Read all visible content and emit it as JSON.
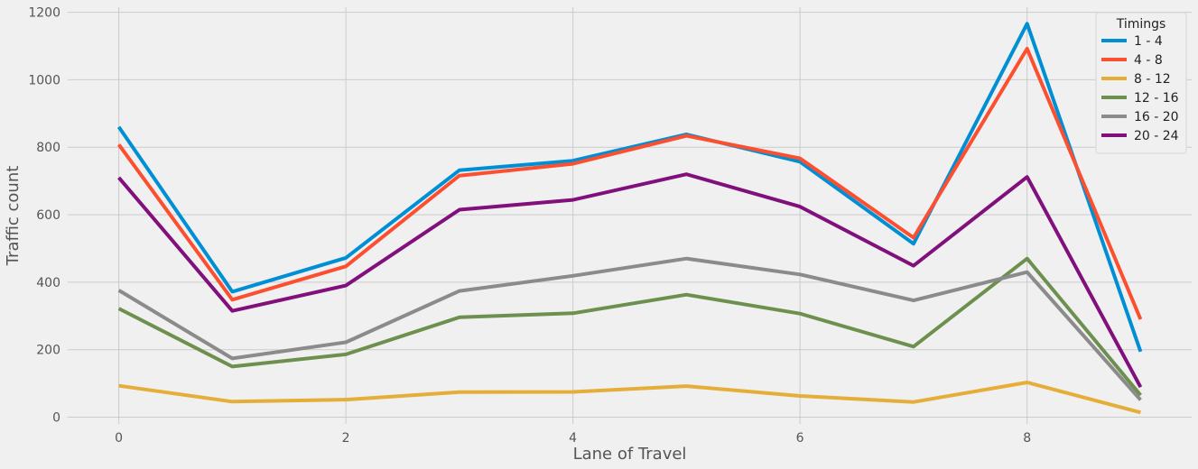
{
  "chart_data": {
    "type": "line",
    "xlabel": "Lane of Travel",
    "ylabel": "Traffic count",
    "xlim": [
      -0.45,
      9.45
    ],
    "ylim": [
      -20,
      1215
    ],
    "x_ticks": [
      0,
      2,
      4,
      6,
      8
    ],
    "y_ticks": [
      0,
      200,
      400,
      600,
      800,
      1000,
      1200
    ],
    "grid": true,
    "legend": {
      "title": "Timings",
      "placement": "top-right"
    },
    "x": [
      0,
      1,
      2,
      3,
      4,
      5,
      6,
      7,
      8,
      9
    ],
    "series": [
      {
        "name": "1 - 4",
        "color": "#008fd5",
        "values": [
          860,
          372,
          472,
          732,
          760,
          838,
          757,
          514,
          1166,
          194
        ]
      },
      {
        "name": "4 - 8",
        "color": "#fc4f30",
        "values": [
          808,
          348,
          447,
          716,
          751,
          834,
          767,
          532,
          1092,
          290
        ]
      },
      {
        "name": "8 - 12",
        "color": "#e5ae38",
        "values": [
          93,
          46,
          52,
          74,
          75,
          92,
          63,
          45,
          103,
          14
        ]
      },
      {
        "name": "12 - 16",
        "color": "#6d904f",
        "values": [
          322,
          150,
          186,
          296,
          308,
          363,
          307,
          209,
          470,
          65
        ]
      },
      {
        "name": "16 - 20",
        "color": "#8b8b8b",
        "values": [
          376,
          174,
          222,
          374,
          419,
          470,
          423,
          346,
          430,
          51
        ]
      },
      {
        "name": "20 - 24",
        "color": "#810f7c",
        "values": [
          710,
          315,
          390,
          615,
          644,
          720,
          624,
          449,
          712,
          89
        ]
      }
    ]
  }
}
